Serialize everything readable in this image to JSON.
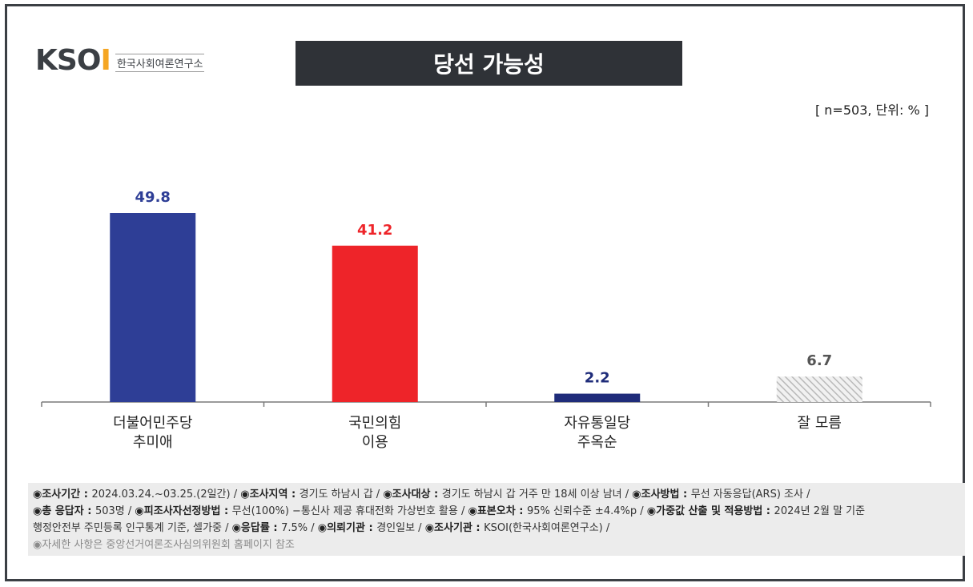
{
  "logo": {
    "mark_left": "KSO",
    "mark_right": "I",
    "subtitle": "한국사회여론연구소"
  },
  "title": "당선 가능성",
  "unit_note": "[ n=503, 단위: % ]",
  "colors": {
    "dem": "#2e3e96",
    "ppp": "#ee2429",
    "unif": "#1f2c7a",
    "unknown": "#d8d8d8",
    "title_bg": "#2f3237"
  },
  "chart_data": {
    "type": "bar",
    "categories": [
      [
        "더불어민주당",
        "추미애"
      ],
      [
        "국민의힘",
        "이용"
      ],
      [
        "자유통일당",
        "주옥순"
      ],
      [
        "잘 모름"
      ]
    ],
    "values": [
      49.8,
      41.2,
      2.2,
      6.7
    ],
    "value_labels": [
      "49.8",
      "41.2",
      "2.2",
      "6.7"
    ],
    "bar_colors": [
      "#2e3e96",
      "#ee2429",
      "#1f2c7a",
      "hatched-gray"
    ],
    "label_colors": [
      "#2e3e96",
      "#ee2429",
      "#1f2c7a",
      "#555555"
    ],
    "ylim": [
      0,
      55
    ]
  },
  "footnote": {
    "line1": [
      {
        "k": "◉조사기간 : ",
        "v": "2024.03.24.~03.25.(2일간)  / "
      },
      {
        "k": "◉조사지역 : ",
        "v": "경기도 하남시 갑 / "
      },
      {
        "k": "◉조사대상 : ",
        "v": "경기도 하남시 갑 거주 만 18세 이상 남녀 / "
      },
      {
        "k": "◉조사방법 : ",
        "v": "무선 자동응답(ARS) 조사 /"
      }
    ],
    "line2": [
      {
        "k": "◉총 응답자 : ",
        "v": "503명 / "
      },
      {
        "k": "◉피조사자선정방법 : ",
        "v": "무선(100%) −통신사 제공 휴대전화 가상번호 활용 / "
      },
      {
        "k": "◉표본오차 : ",
        "v": "95% 신뢰수준 ±4.4%p / "
      },
      {
        "k": "◉가중값 산출 및 적용방법 : ",
        "v": "2024년 2월 말 기준"
      }
    ],
    "line3": [
      {
        "k": "",
        "v": "행정안전부 주민등록 인구통계 기준, 셀가중 / "
      },
      {
        "k": "◉응답률 : ",
        "v": "7.5% / "
      },
      {
        "k": "◉의뢰기관 : ",
        "v": "경인일보 / "
      },
      {
        "k": "◉조사기관 : ",
        "v": "KSOI(한국사회여론연구소) /"
      }
    ],
    "line4": "◉자세한 사항은 중앙선거여론조사심의위원회 홈페이지 참조"
  }
}
